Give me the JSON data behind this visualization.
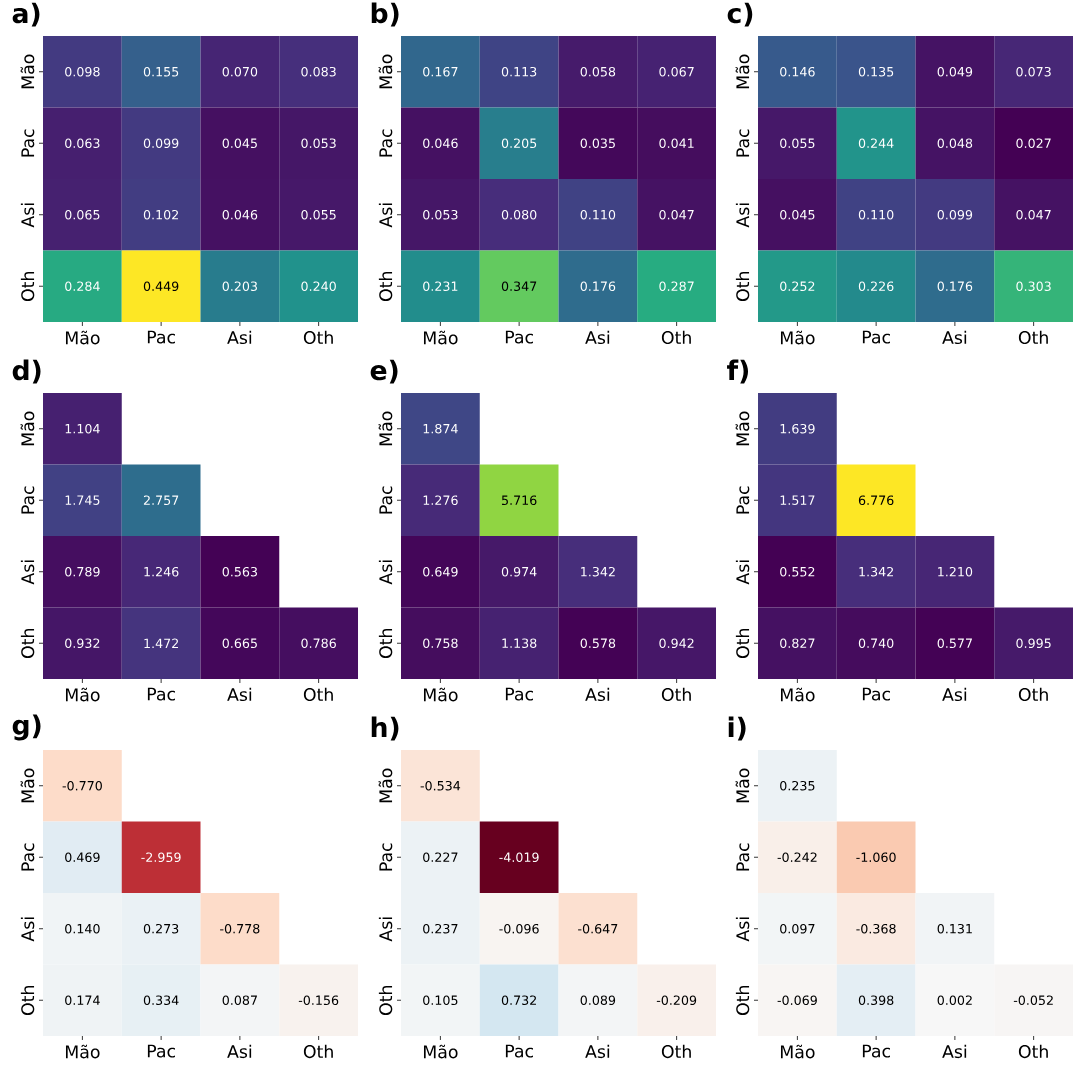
{
  "chart_data": [
    {
      "type": "heatmap",
      "title": "a)",
      "categories": [
        "Mão",
        "Pac",
        "Asi",
        "Oth"
      ],
      "y_categories": [
        "Mão",
        "Pac",
        "Asi",
        "Oth"
      ],
      "cells": [
        [
          0.098,
          0.155,
          0.07,
          0.083
        ],
        [
          0.063,
          0.099,
          0.045,
          0.053
        ],
        [
          0.065,
          0.102,
          0.046,
          0.055
        ],
        [
          0.284,
          0.449,
          0.203,
          0.24
        ]
      ],
      "cell_labels": [
        [
          "0.098",
          "0.155",
          "0.070",
          "0.083"
        ],
        [
          "0.063",
          "0.099",
          "0.045",
          "0.053"
        ],
        [
          "0.065",
          "0.102",
          "0.046",
          "0.055"
        ],
        [
          "0.284",
          "0.449",
          "0.203",
          "0.240"
        ]
      ]
    },
    {
      "type": "heatmap",
      "title": "b)",
      "categories": [
        "Mão",
        "Pac",
        "Asi",
        "Oth"
      ],
      "y_categories": [
        "Mão",
        "Pac",
        "Asi",
        "Oth"
      ],
      "cells": [
        [
          0.167,
          0.113,
          0.058,
          0.067
        ],
        [
          0.046,
          0.205,
          0.035,
          0.041
        ],
        [
          0.053,
          0.08,
          0.11,
          0.047
        ],
        [
          0.231,
          0.347,
          0.176,
          0.287
        ]
      ],
      "cell_labels": [
        [
          "0.167",
          "0.113",
          "0.058",
          "0.067"
        ],
        [
          "0.046",
          "0.205",
          "0.035",
          "0.041"
        ],
        [
          "0.053",
          "0.080",
          "0.110",
          "0.047"
        ],
        [
          "0.231",
          "0.347",
          "0.176",
          "0.287"
        ]
      ]
    },
    {
      "type": "heatmap",
      "title": "c)",
      "categories": [
        "Mão",
        "Pac",
        "Asi",
        "Oth"
      ],
      "y_categories": [
        "Mão",
        "Pac",
        "Asi",
        "Oth"
      ],
      "cells": [
        [
          0.146,
          0.135,
          0.049,
          0.073
        ],
        [
          0.055,
          0.244,
          0.048,
          0.027
        ],
        [
          0.045,
          0.11,
          0.099,
          0.047
        ],
        [
          0.252,
          0.226,
          0.176,
          0.303
        ]
      ],
      "cell_labels": [
        [
          "0.146",
          "0.135",
          "0.049",
          "0.073"
        ],
        [
          "0.055",
          "0.244",
          "0.048",
          "0.027"
        ],
        [
          "0.045",
          "0.110",
          "0.099",
          "0.047"
        ],
        [
          "0.252",
          "0.226",
          "0.176",
          "0.303"
        ]
      ]
    },
    {
      "type": "heatmap",
      "title": "d)",
      "categories": [
        "Mão",
        "Pac",
        "Asi",
        "Oth"
      ],
      "y_categories": [
        "Mão",
        "Pac",
        "Asi",
        "Oth"
      ],
      "cells": [
        [
          1.104,
          null,
          null,
          null
        ],
        [
          1.745,
          2.757,
          null,
          null
        ],
        [
          0.789,
          1.246,
          0.563,
          null
        ],
        [
          0.932,
          1.472,
          0.665,
          0.786
        ]
      ],
      "cell_labels": [
        [
          "1.104",
          null,
          null,
          null
        ],
        [
          "1.745",
          "2.757",
          null,
          null
        ],
        [
          "0.789",
          "1.246",
          "0.563",
          null
        ],
        [
          "0.932",
          "1.472",
          "0.665",
          "0.786"
        ]
      ]
    },
    {
      "type": "heatmap",
      "title": "e)",
      "categories": [
        "Mão",
        "Pac",
        "Asi",
        "Oth"
      ],
      "y_categories": [
        "Mão",
        "Pac",
        "Asi",
        "Oth"
      ],
      "cells": [
        [
          1.874,
          null,
          null,
          null
        ],
        [
          1.276,
          5.716,
          null,
          null
        ],
        [
          0.649,
          0.974,
          1.342,
          null
        ],
        [
          0.758,
          1.138,
          0.578,
          0.942
        ]
      ],
      "cell_labels": [
        [
          "1.874",
          null,
          null,
          null
        ],
        [
          "1.276",
          "5.716",
          null,
          null
        ],
        [
          "0.649",
          "0.974",
          "1.342",
          null
        ],
        [
          "0.758",
          "1.138",
          "0.578",
          "0.942"
        ]
      ]
    },
    {
      "type": "heatmap",
      "title": "f)",
      "categories": [
        "Mão",
        "Pac",
        "Asi",
        "Oth"
      ],
      "y_categories": [
        "Mão",
        "Pac",
        "Asi",
        "Oth"
      ],
      "cells": [
        [
          1.639,
          null,
          null,
          null
        ],
        [
          1.517,
          6.776,
          null,
          null
        ],
        [
          0.552,
          1.342,
          1.21,
          null
        ],
        [
          0.827,
          0.74,
          0.577,
          0.995
        ]
      ],
      "cell_labels": [
        [
          "1.639",
          null,
          null,
          null
        ],
        [
          "1.517",
          "6.776",
          null,
          null
        ],
        [
          "0.552",
          "1.342",
          "1.210",
          null
        ],
        [
          "0.827",
          "0.740",
          "0.577",
          "0.995"
        ]
      ]
    },
    {
      "type": "heatmap",
      "title": "g)",
      "categories": [
        "Mão",
        "Pac",
        "Asi",
        "Oth"
      ],
      "y_categories": [
        "Mão",
        "Pac",
        "Asi",
        "Oth"
      ],
      "cells": [
        [
          -0.77,
          null,
          null,
          null
        ],
        [
          0.469,
          -2.959,
          null,
          null
        ],
        [
          0.14,
          0.273,
          -0.778,
          null
        ],
        [
          0.174,
          0.334,
          0.087,
          -0.156
        ]
      ],
      "cell_labels": [
        [
          "-0.770",
          null,
          null,
          null
        ],
        [
          "0.469",
          "-2.959",
          null,
          null
        ],
        [
          "0.140",
          "0.273",
          "-0.778",
          null
        ],
        [
          "0.174",
          "0.334",
          "0.087",
          "-0.156"
        ]
      ]
    },
    {
      "type": "heatmap",
      "title": "h)",
      "categories": [
        "Mão",
        "Pac",
        "Asi",
        "Oth"
      ],
      "y_categories": [
        "Mão",
        "Pac",
        "Asi",
        "Oth"
      ],
      "cells": [
        [
          -0.534,
          null,
          null,
          null
        ],
        [
          0.227,
          -4.019,
          null,
          null
        ],
        [
          0.237,
          -0.096,
          -0.647,
          null
        ],
        [
          0.105,
          0.732,
          0.089,
          -0.209
        ]
      ],
      "cell_labels": [
        [
          "-0.534",
          null,
          null,
          null
        ],
        [
          "0.227",
          "-4.019",
          null,
          null
        ],
        [
          "0.237",
          "-0.096",
          "-0.647",
          null
        ],
        [
          "0.105",
          "0.732",
          "0.089",
          "-0.209"
        ]
      ]
    },
    {
      "type": "heatmap",
      "title": "i)",
      "categories": [
        "Mão",
        "Pac",
        "Asi",
        "Oth"
      ],
      "y_categories": [
        "Mão",
        "Pac",
        "Asi",
        "Oth"
      ],
      "cells": [
        [
          0.235,
          null,
          null,
          null
        ],
        [
          -0.242,
          -1.06,
          null,
          null
        ],
        [
          0.097,
          -0.368,
          0.131,
          null
        ],
        [
          -0.069,
          0.398,
          0.002,
          -0.052
        ]
      ],
      "cell_labels": [
        [
          "0.235",
          null,
          null,
          null
        ],
        [
          "-0.242",
          "-1.060",
          null,
          null
        ],
        [
          "0.097",
          "-0.368",
          "0.131",
          null
        ],
        [
          "-0.069",
          "0.398",
          "0.002",
          "-0.052"
        ]
      ]
    }
  ]
}
